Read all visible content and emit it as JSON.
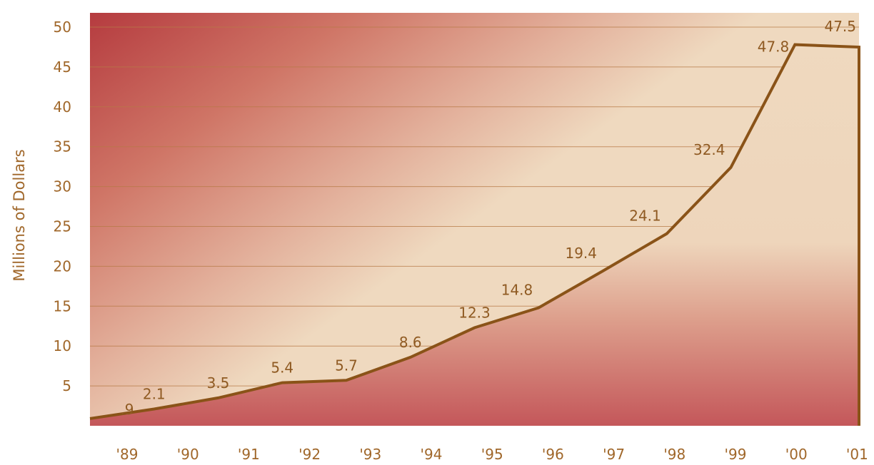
{
  "chart_data": {
    "type": "area",
    "ylabel": "Millions of Dollars",
    "categories": [
      "'89",
      "'90",
      "'91",
      "'92",
      "'93",
      "'94",
      "'95",
      "'96",
      "'97",
      "'98",
      "'99",
      "'00",
      "'01"
    ],
    "values": [
      0.9,
      2.1,
      3.5,
      5.4,
      5.7,
      8.6,
      12.3,
      14.8,
      19.4,
      24.1,
      32.4,
      47.8,
      47.5
    ],
    "data_labels": [
      ".9",
      "2.1",
      "3.5",
      "5.4",
      "5.7",
      "8.6",
      "12.3",
      "14.8",
      "19.4",
      "24.1",
      "32.4",
      "47.8",
      "47.5"
    ],
    "y_ticks": [
      "5",
      "10",
      "15",
      "20",
      "25",
      "30",
      "35",
      "40",
      "45",
      "50"
    ],
    "y_tick_values": [
      5,
      10,
      15,
      20,
      25,
      30,
      35,
      40,
      45,
      50
    ],
    "ylim": [
      0,
      50
    ],
    "grid": true,
    "colors": {
      "line": "#8a5318",
      "text": "#a0672a",
      "grid": "#b77a45",
      "area_fill": "#efd9bf",
      "background_dark": "#b53b3f"
    }
  }
}
